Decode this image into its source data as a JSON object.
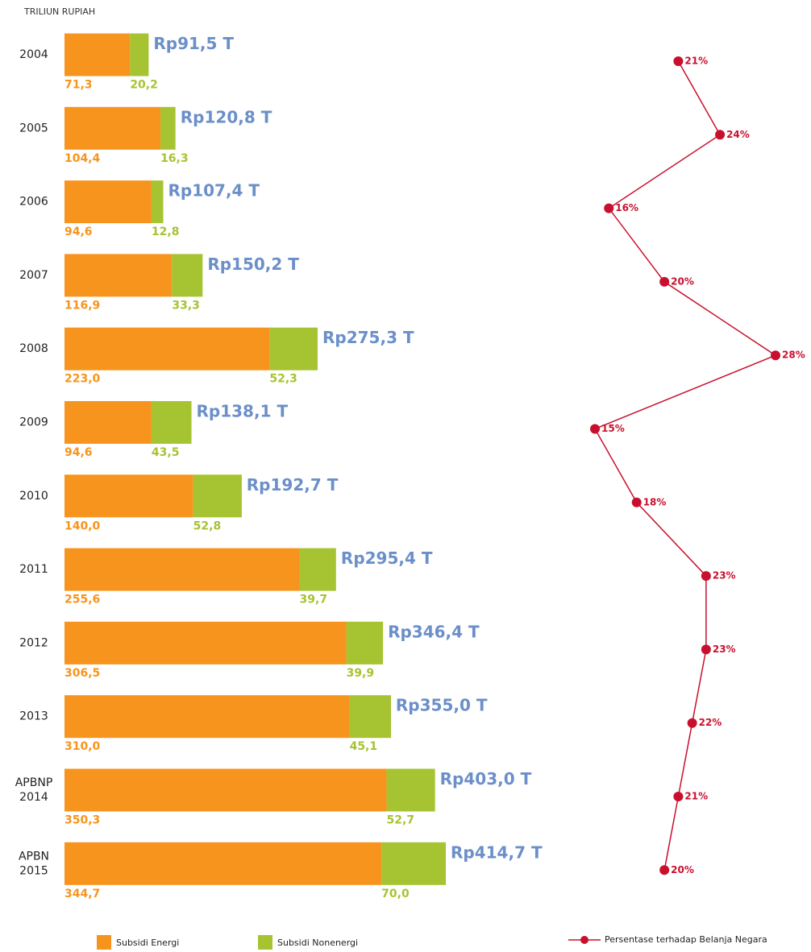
{
  "chart_data": {
    "type": "stacked-bar-line",
    "unit_label": "TRILIUN RUPIAH",
    "categories": [
      "2004",
      "2005",
      "2006",
      "2007",
      "2008",
      "2009",
      "2010",
      "2011",
      "2012",
      "2013",
      "APBNP 2014",
      "APBN 2015"
    ],
    "series": [
      {
        "name": "Subsidi Energi",
        "color": "#f7941d",
        "values": [
          71.3,
          104.4,
          94.6,
          116.9,
          223.0,
          94.6,
          140.0,
          255.6,
          306.5,
          310.0,
          350.3,
          344.7
        ],
        "value_labels": [
          "71,3",
          "104,4",
          "94,6",
          "116,9",
          "223,0",
          "94,6",
          "140,0",
          "255,6",
          "306,5",
          "310,0",
          "350,3",
          "344,7"
        ]
      },
      {
        "name": "Subsidi Nonenergi",
        "color": "#a6c332",
        "values": [
          20.2,
          16.3,
          12.8,
          33.3,
          52.3,
          43.5,
          52.8,
          39.7,
          39.9,
          45.1,
          52.7,
          70.0
        ],
        "value_labels": [
          "20,2",
          "16,3",
          "12,8",
          "33,3",
          "52,3",
          "43,5",
          "52,8",
          "39,7",
          "39,9",
          "45,1",
          "52,7",
          "70,0"
        ]
      }
    ],
    "totals": {
      "color": "#6b8fc9",
      "values": [
        91.5,
        120.8,
        107.4,
        150.2,
        275.3,
        138.1,
        192.7,
        295.4,
        346.4,
        355.0,
        403.0,
        414.7
      ],
      "value_labels": [
        "Rp91,5 T",
        "Rp120,8 T",
        "Rp107,4 T",
        "Rp150,2 T",
        "Rp275,3 T",
        "Rp138,1 T",
        "Rp192,7 T",
        "Rp295,4 T",
        "Rp346,4 T",
        "Rp355,0 T",
        "Rp403,0 T",
        "Rp414,7 T"
      ]
    },
    "line": {
      "name": "Persentase terhadap Belanja Negara",
      "color": "#c8102e",
      "values": [
        21,
        24,
        16,
        20,
        28,
        15,
        18,
        23,
        23,
        22,
        21,
        20
      ],
      "value_labels": [
        "21%",
        "24%",
        "16%",
        "20%",
        "28%",
        "15%",
        "18%",
        "23%",
        "23%",
        "22%",
        "21%",
        "20%"
      ]
    }
  }
}
